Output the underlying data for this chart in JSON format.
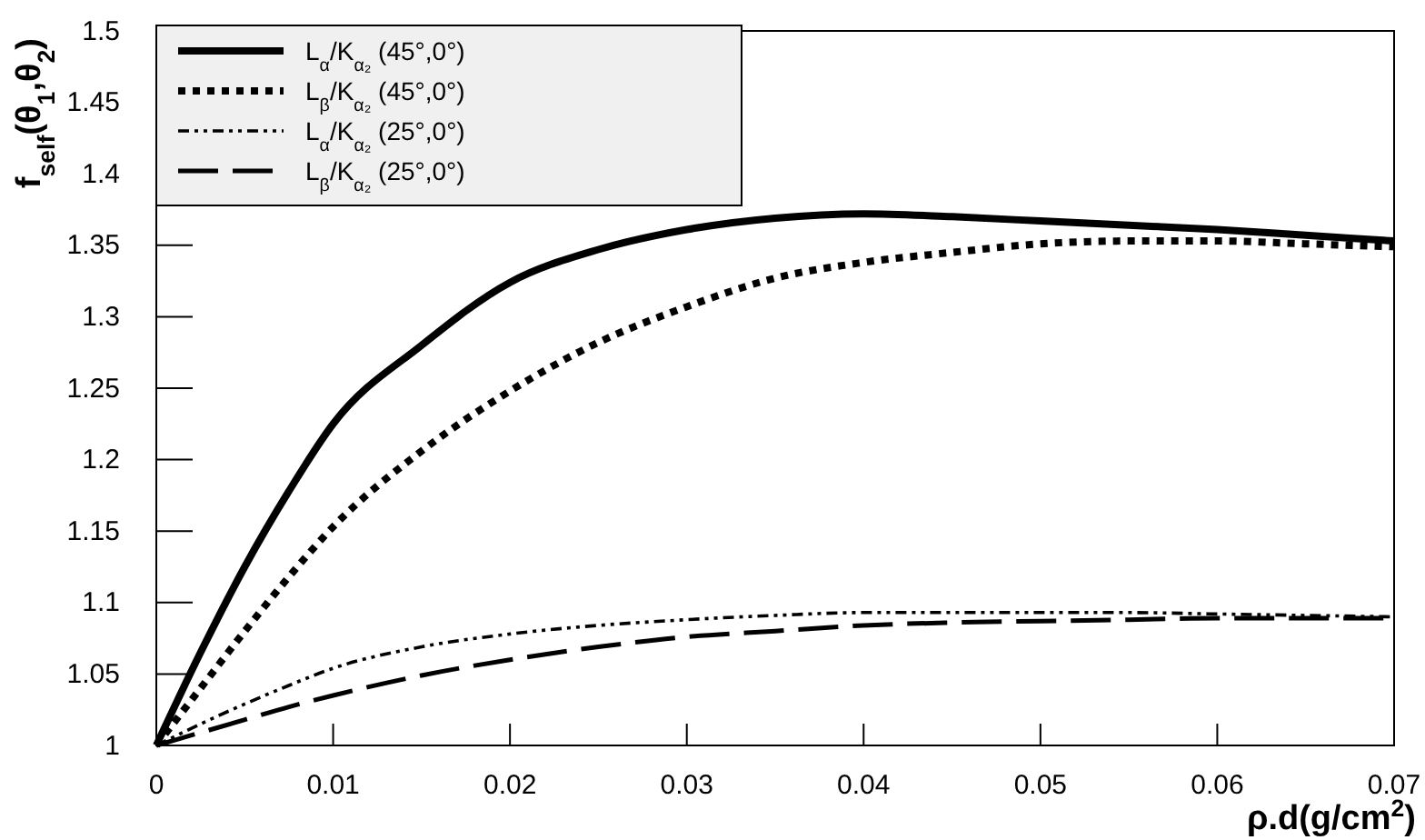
{
  "chart_data": {
    "type": "line",
    "xlabel": "ρ.d(g/cm$^{2}$)",
    "ylabel": "f$_{self}$(θ$_{1}$,θ$_{2}$)",
    "x": [
      0,
      0.0025,
      0.005,
      0.0075,
      0.01,
      0.015,
      0.02,
      0.025,
      0.03,
      0.035,
      0.04,
      0.045,
      0.05,
      0.055,
      0.06,
      0.065,
      0.07
    ],
    "series": [
      {
        "name": "L$_{α}$/K$_{α₂}$ (45°,0°)",
        "color": "#000000",
        "line_style": "solid",
        "values": [
          1,
          1.065,
          1.125,
          1.178,
          1.225,
          1.28,
          1.324,
          1.347,
          1.361,
          1.369,
          1.372,
          1.37,
          1.367,
          1.364,
          1.361,
          1.357,
          1.353
        ]
      },
      {
        "name": "L$_{β}$/K$_{α₂}$ (45°,0°)",
        "color": "#000000",
        "line_style": "dotted",
        "values": [
          1,
          1.04,
          1.08,
          1.118,
          1.153,
          1.206,
          1.248,
          1.282,
          1.307,
          1.327,
          1.338,
          1.345,
          1.351,
          1.353,
          1.353,
          1.351,
          1.349
        ]
      },
      {
        "name": "L$_{α}$/K$_{α₂}$ (25°,0°)",
        "color": "#000000",
        "line_style": "dotted",
        "values": [
          1,
          1.015,
          1.029,
          1.042,
          1.054,
          1.069,
          1.078,
          1.084,
          1.088,
          1.091,
          1.093,
          1.093,
          1.093,
          1.093,
          1.092,
          1.091,
          1.09
        ]
      },
      {
        "name": "L$_{β}$/K$_{α₂}$ (25°,0°)",
        "color": "#000000",
        "line_style": "dashed",
        "values": [
          1,
          1.009,
          1.018,
          1.027,
          1.035,
          1.049,
          1.06,
          1.069,
          1.076,
          1.08,
          1.084,
          1.086,
          1.087,
          1.088,
          1.089,
          1.089,
          1.089
        ]
      }
    ],
    "xlim": [
      0,
      0.07
    ],
    "xticks": [
      0,
      0.01,
      0.02,
      0.03,
      0.04,
      0.05,
      0.06,
      0.07
    ],
    "ylim": [
      1,
      1.5
    ],
    "yticks": [
      1,
      1.05,
      1.1,
      1.15,
      1.2,
      1.25,
      1.3,
      1.35,
      1.4,
      1.45,
      1.5
    ],
    "grid": false,
    "legend": "top left",
    "marker": "none"
  }
}
